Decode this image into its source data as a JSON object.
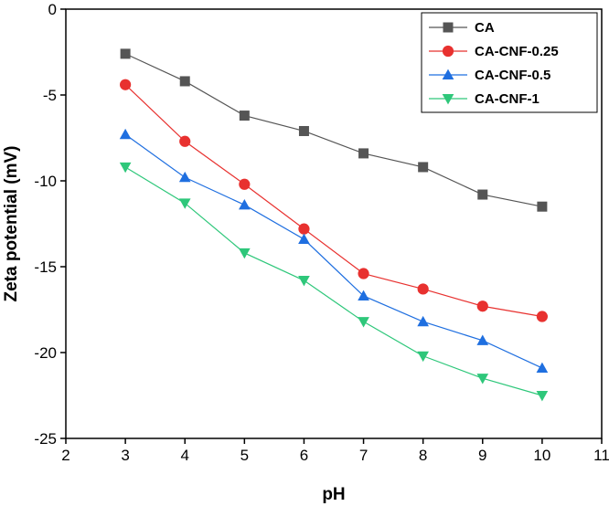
{
  "chart_data": {
    "type": "line",
    "title": "",
    "xlabel": "pH",
    "ylabel": "Zeta potential (mV)",
    "xlim": [
      2,
      11
    ],
    "ylim": [
      -25,
      0
    ],
    "xticks": [
      2,
      3,
      4,
      5,
      6,
      7,
      8,
      9,
      10,
      11
    ],
    "yticks": [
      0,
      -5,
      -10,
      -15,
      -20,
      -25
    ],
    "grid": false,
    "legend_position": "top-right",
    "x": [
      3,
      4,
      5,
      6,
      7,
      8,
      9,
      10
    ],
    "series": [
      {
        "name": "CA",
        "color": "#555555",
        "marker": "square",
        "values": [
          -2.6,
          -4.2,
          -6.2,
          -7.1,
          -8.4,
          -9.2,
          -10.8,
          -11.5
        ]
      },
      {
        "name": "CA-CNF-0.25",
        "color": "#e8312f",
        "marker": "circle",
        "values": [
          -4.4,
          -7.7,
          -10.2,
          -12.8,
          -15.4,
          -16.3,
          -17.3,
          -17.9
        ]
      },
      {
        "name": "CA-CNF-0.5",
        "color": "#1f6fe0",
        "marker": "triangle-up",
        "values": [
          -7.3,
          -9.8,
          -11.4,
          -13.4,
          -16.7,
          -18.2,
          -19.3,
          -20.9
        ]
      },
      {
        "name": "CA-CNF-1",
        "color": "#2ec77a",
        "marker": "triangle-down",
        "values": [
          -9.2,
          -11.3,
          -14.2,
          -15.8,
          -18.2,
          -20.2,
          -21.5,
          -22.5
        ]
      }
    ]
  }
}
